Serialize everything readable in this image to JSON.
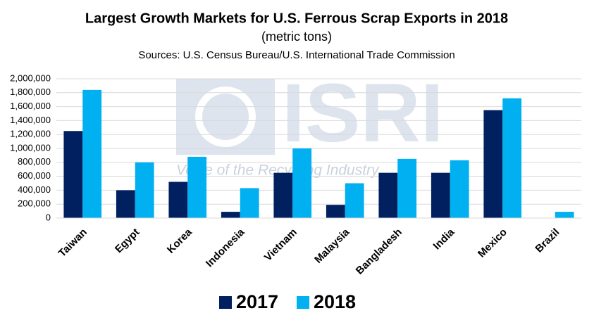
{
  "chart_data": {
    "type": "bar",
    "title": "Largest Growth Markets for U.S. Ferrous Scrap Exports in 2018",
    "subtitle": "(metric tons)",
    "source": "Sources: U.S. Census Bureau/U.S. International Trade Commission",
    "watermark": {
      "logo": "ISRI",
      "slogan": "Voice of the Recycling Industry"
    },
    "categories": [
      "Taiwan",
      "Egypt",
      "Korea",
      "Indonesia",
      "Vietnam",
      "Malaysia",
      "Bangladesh",
      "India",
      "Mexico",
      "Brazil"
    ],
    "series": [
      {
        "name": "2017",
        "color": "#002060",
        "values": [
          1250000,
          400000,
          520000,
          90000,
          650000,
          190000,
          650000,
          650000,
          1550000,
          0
        ]
      },
      {
        "name": "2018",
        "color": "#00b0f0",
        "values": [
          1840000,
          800000,
          880000,
          430000,
          1000000,
          500000,
          850000,
          830000,
          1720000,
          90000
        ]
      }
    ],
    "ylim": [
      0,
      2000000
    ],
    "yticks": [
      0,
      {
        "value": 200000,
        "label": "200,000"
      },
      {
        "value": 400000,
        "label": "400,000"
      },
      {
        "value": 600000,
        "label": "600,000"
      },
      {
        "value": 800000,
        "label": "800,000"
      },
      {
        "value": 1000000,
        "label": "1,000,000"
      },
      {
        "value": 1200000,
        "label": "1,200,000"
      },
      {
        "value": 1400000,
        "label": "1,400,000"
      },
      {
        "value": 1600000,
        "label": "1,600,000"
      },
      {
        "value": 1800000,
        "label": "1,800,000"
      },
      {
        "value": 2000000,
        "label": "2,000,000"
      }
    ],
    "grid": true,
    "legend": "bottom"
  }
}
